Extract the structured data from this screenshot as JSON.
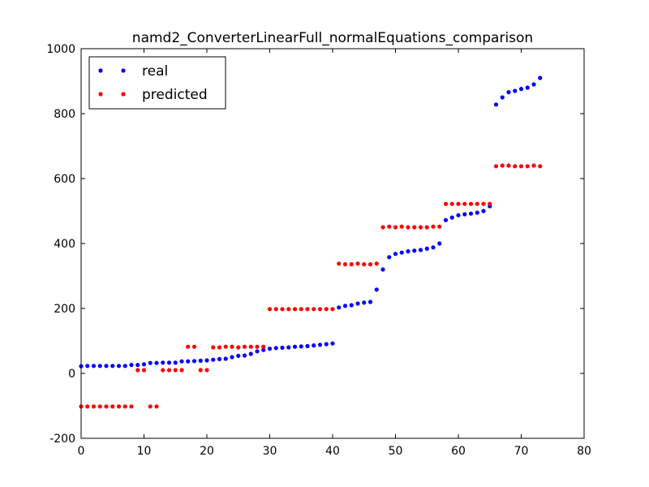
{
  "chart_data": {
    "type": "scatter",
    "title": "namd2_ConverterLinearFull_normalEquations_comparison",
    "xlabel": "",
    "ylabel": "",
    "xlim": [
      0,
      80
    ],
    "ylim": [
      -200,
      1000
    ],
    "xticks": [
      0,
      10,
      20,
      30,
      40,
      50,
      60,
      70,
      80
    ],
    "yticks": [
      -200,
      0,
      200,
      400,
      600,
      800,
      1000
    ],
    "grid": false,
    "legend_position": "top-left",
    "series": [
      {
        "name": "real",
        "color": "#0000ff",
        "x": [
          0,
          1,
          2,
          3,
          4,
          5,
          6,
          7,
          8,
          9,
          10,
          11,
          12,
          13,
          14,
          15,
          16,
          17,
          18,
          19,
          20,
          21,
          22,
          23,
          24,
          25,
          26,
          27,
          28,
          29,
          30,
          31,
          32,
          33,
          34,
          35,
          36,
          37,
          38,
          39,
          40,
          41,
          42,
          43,
          44,
          45,
          46,
          47,
          48,
          49,
          50,
          51,
          52,
          53,
          54,
          55,
          56,
          57,
          58,
          59,
          60,
          61,
          62,
          63,
          64,
          65,
          66,
          67,
          68,
          69,
          70,
          71,
          72,
          73
        ],
        "y": [
          22,
          23,
          23,
          23,
          23,
          23,
          23,
          23,
          26,
          26,
          28,
          32,
          32,
          33,
          33,
          33,
          37,
          37,
          38,
          39,
          40,
          42,
          44,
          45,
          50,
          54,
          55,
          60,
          68,
          72,
          76,
          78,
          79,
          80,
          82,
          83,
          84,
          86,
          88,
          90,
          92,
          203,
          208,
          210,
          215,
          218,
          220,
          258,
          320,
          358,
          368,
          372,
          376,
          378,
          380,
          384,
          388,
          400,
          472,
          480,
          487,
          490,
          492,
          495,
          500,
          515,
          828,
          850,
          866,
          870,
          876,
          880,
          890,
          910
        ]
      },
      {
        "name": "predicted",
        "color": "#ff0000",
        "x": [
          0,
          1,
          2,
          3,
          4,
          5,
          6,
          7,
          8,
          9,
          10,
          11,
          12,
          13,
          14,
          15,
          16,
          17,
          18,
          19,
          20,
          21,
          22,
          23,
          24,
          25,
          26,
          27,
          28,
          29,
          30,
          31,
          32,
          33,
          34,
          35,
          36,
          37,
          38,
          39,
          40,
          41,
          42,
          43,
          44,
          45,
          46,
          47,
          48,
          49,
          50,
          51,
          52,
          53,
          54,
          55,
          56,
          57,
          58,
          59,
          60,
          61,
          62,
          63,
          64,
          65,
          66,
          67,
          68,
          69,
          70,
          71,
          72,
          73
        ],
        "y": [
          -102,
          -102,
          -102,
          -102,
          -102,
          -102,
          -102,
          -102,
          -102,
          10,
          10,
          -102,
          -102,
          10,
          10,
          10,
          10,
          82,
          82,
          10,
          10,
          80,
          80,
          82,
          82,
          80,
          82,
          82,
          82,
          82,
          198,
          198,
          198,
          198,
          198,
          198,
          198,
          198,
          198,
          198,
          198,
          338,
          336,
          336,
          338,
          336,
          336,
          338,
          450,
          452,
          450,
          452,
          450,
          450,
          450,
          450,
          452,
          452,
          522,
          522,
          522,
          522,
          522,
          522,
          522,
          522,
          638,
          640,
          640,
          638,
          638,
          638,
          640,
          638
        ]
      }
    ]
  }
}
